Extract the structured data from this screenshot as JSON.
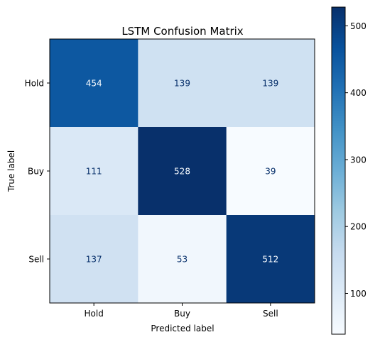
{
  "chart_data": {
    "type": "heatmap",
    "title": "LSTM Confusion Matrix",
    "xlabel": "Predicted label",
    "ylabel": "True label",
    "x_categories": [
      "Hold",
      "Buy",
      "Sell"
    ],
    "y_categories": [
      "Hold",
      "Buy",
      "Sell"
    ],
    "values": [
      [
        454,
        139,
        139
      ],
      [
        111,
        528,
        39
      ],
      [
        137,
        53,
        512
      ]
    ],
    "colormap": "Blues",
    "color_range": [
      39,
      528
    ],
    "colorbar_ticks": [
      100,
      200,
      300,
      400,
      500
    ]
  }
}
